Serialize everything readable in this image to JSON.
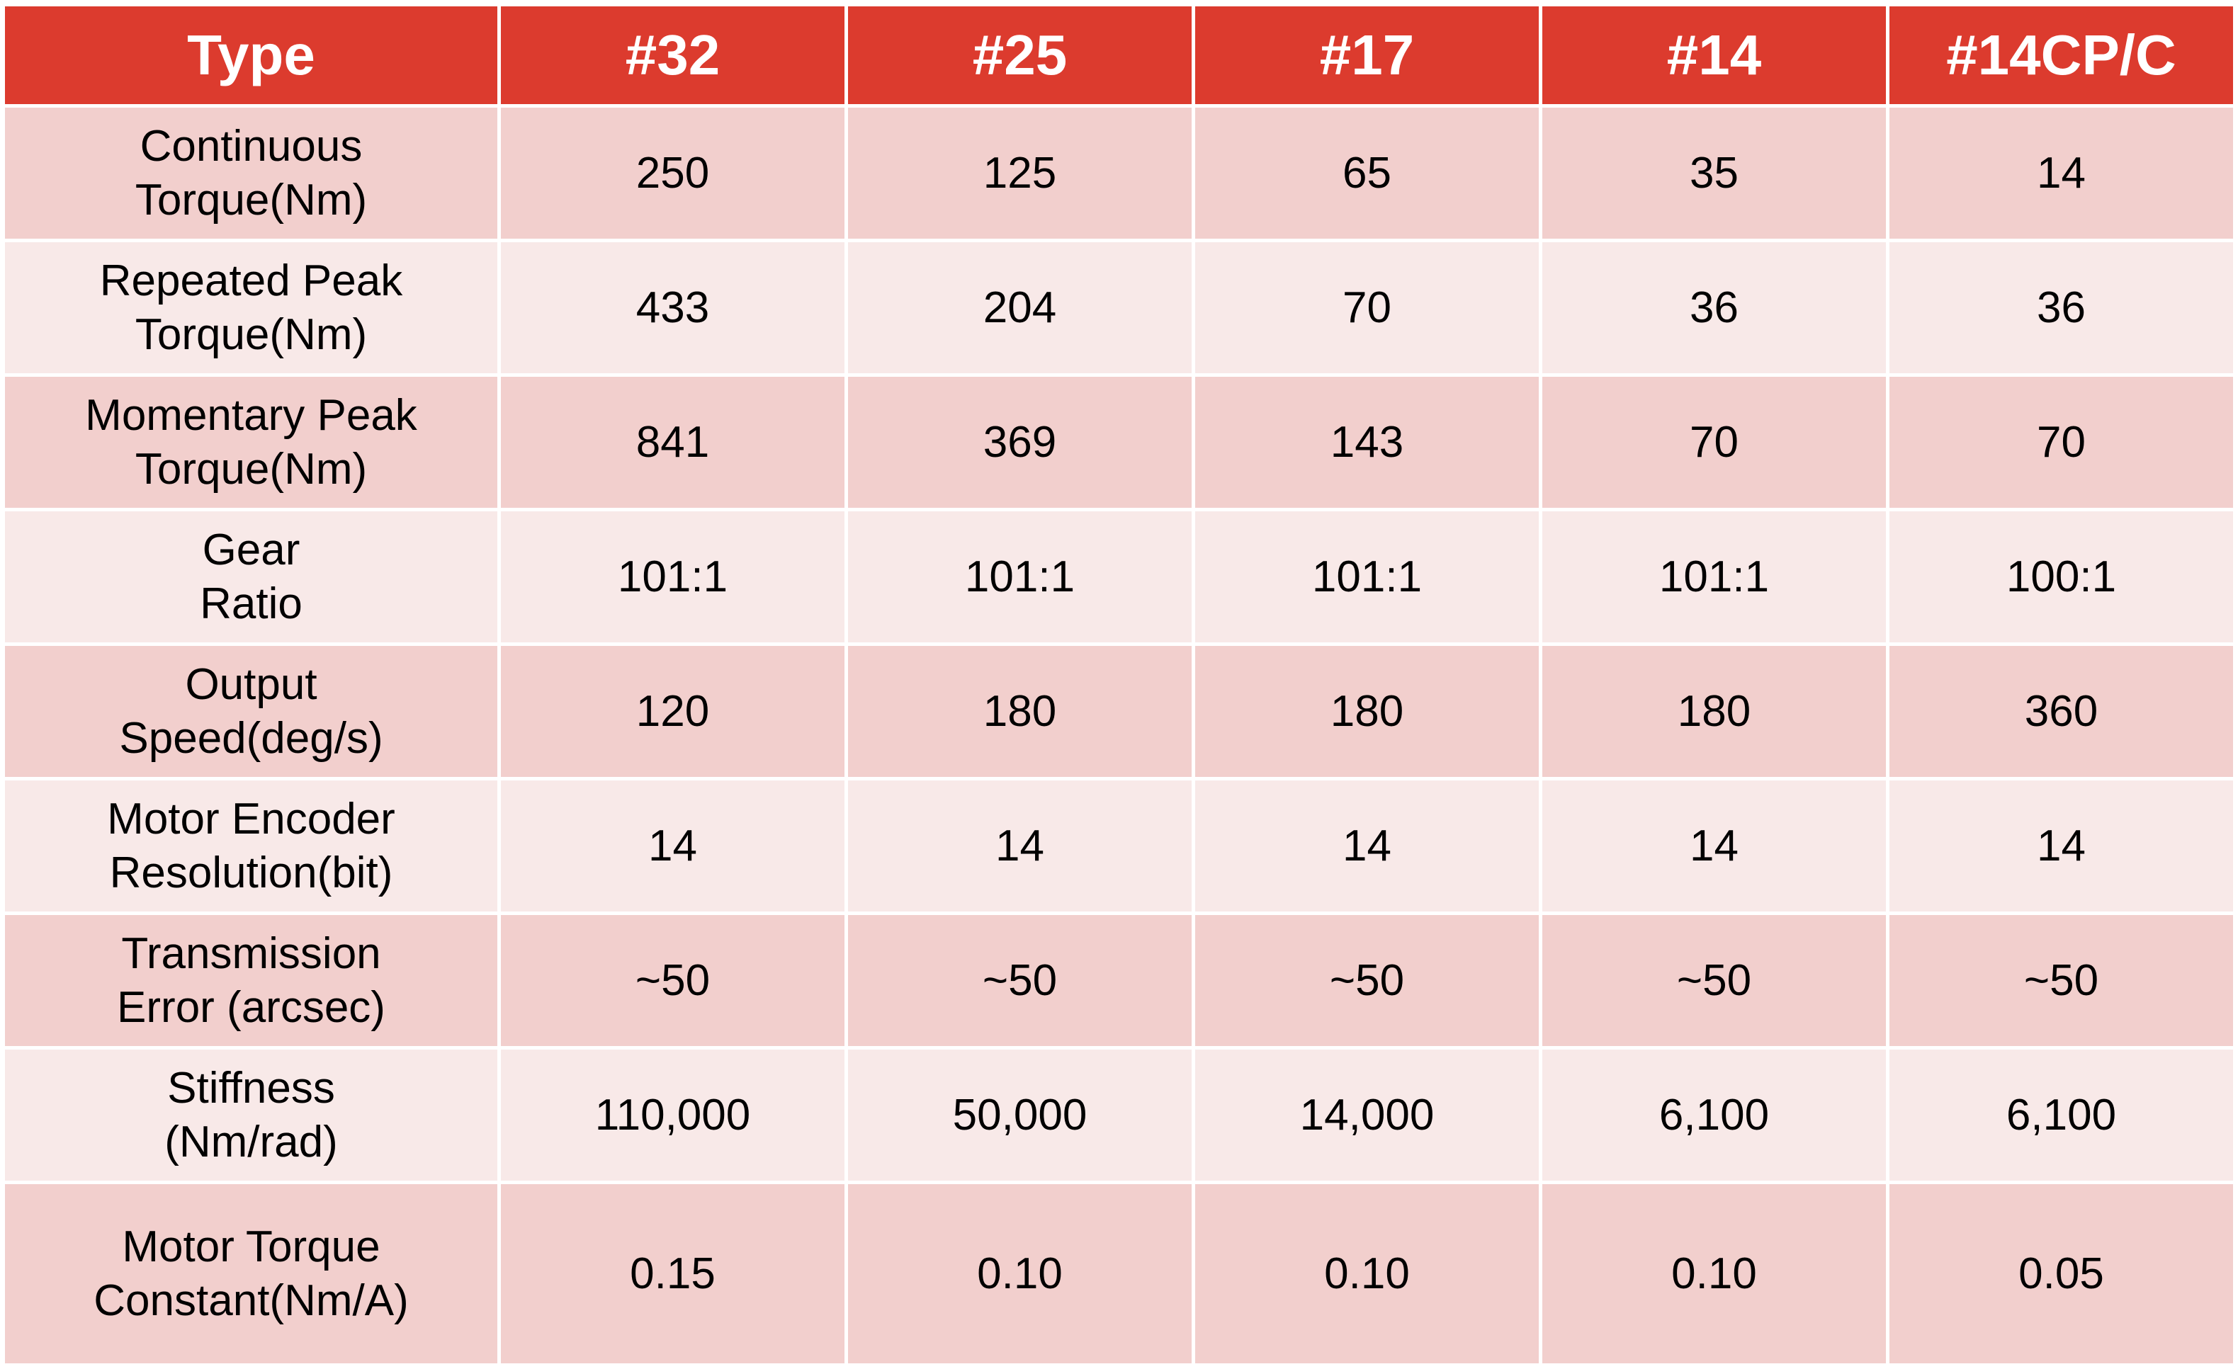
{
  "table": {
    "header": [
      "Type",
      "#32",
      "#25",
      "#17",
      "#14",
      "#14CP/C"
    ],
    "rows": [
      {
        "label_line1": "Continuous",
        "label_line2": "Torque(Nm)",
        "values": [
          "250",
          "125",
          "65",
          "35",
          "14"
        ]
      },
      {
        "label_line1": "Repeated Peak",
        "label_line2": "Torque(Nm)",
        "values": [
          "433",
          "204",
          "70",
          "36",
          "36"
        ]
      },
      {
        "label_line1": "Momentary Peak",
        "label_line2": "Torque(Nm)",
        "values": [
          "841",
          "369",
          "143",
          "70",
          "70"
        ]
      },
      {
        "label_line1": "Gear",
        "label_line2": "Ratio",
        "values": [
          "101:1",
          "101:1",
          "101:1",
          "101:1",
          "100:1"
        ]
      },
      {
        "label_line1": "Output",
        "label_line2": "Speed(deg/s)",
        "values": [
          "120",
          "180",
          "180",
          "180",
          "360"
        ]
      },
      {
        "label_line1": "Motor Encoder",
        "label_line2": "Resolution(bit)",
        "values": [
          "14",
          "14",
          "14",
          "14",
          "14"
        ]
      },
      {
        "label_line1": "Transmission",
        "label_line2": "Error (arcsec)",
        "values": [
          "~50",
          "~50",
          "~50",
          "~50",
          "~50"
        ]
      },
      {
        "label_line1": "Stiffness",
        "label_line2": "(Nm/rad)",
        "values": [
          "110,000",
          "50,000",
          "14,000",
          "6,100",
          "6,100"
        ]
      },
      {
        "label_line1": "Motor Torque",
        "label_line2": "Constant(Nm/A)",
        "values": [
          "0.15",
          "0.10",
          "0.10",
          "0.10",
          "0.05"
        ]
      }
    ]
  },
  "colors": {
    "header_bg": "#dc3b2e",
    "header_text": "#ffffff",
    "row_dark": "#f2cfcd",
    "row_light": "#f8e9e8",
    "border": "#ffffff"
  }
}
